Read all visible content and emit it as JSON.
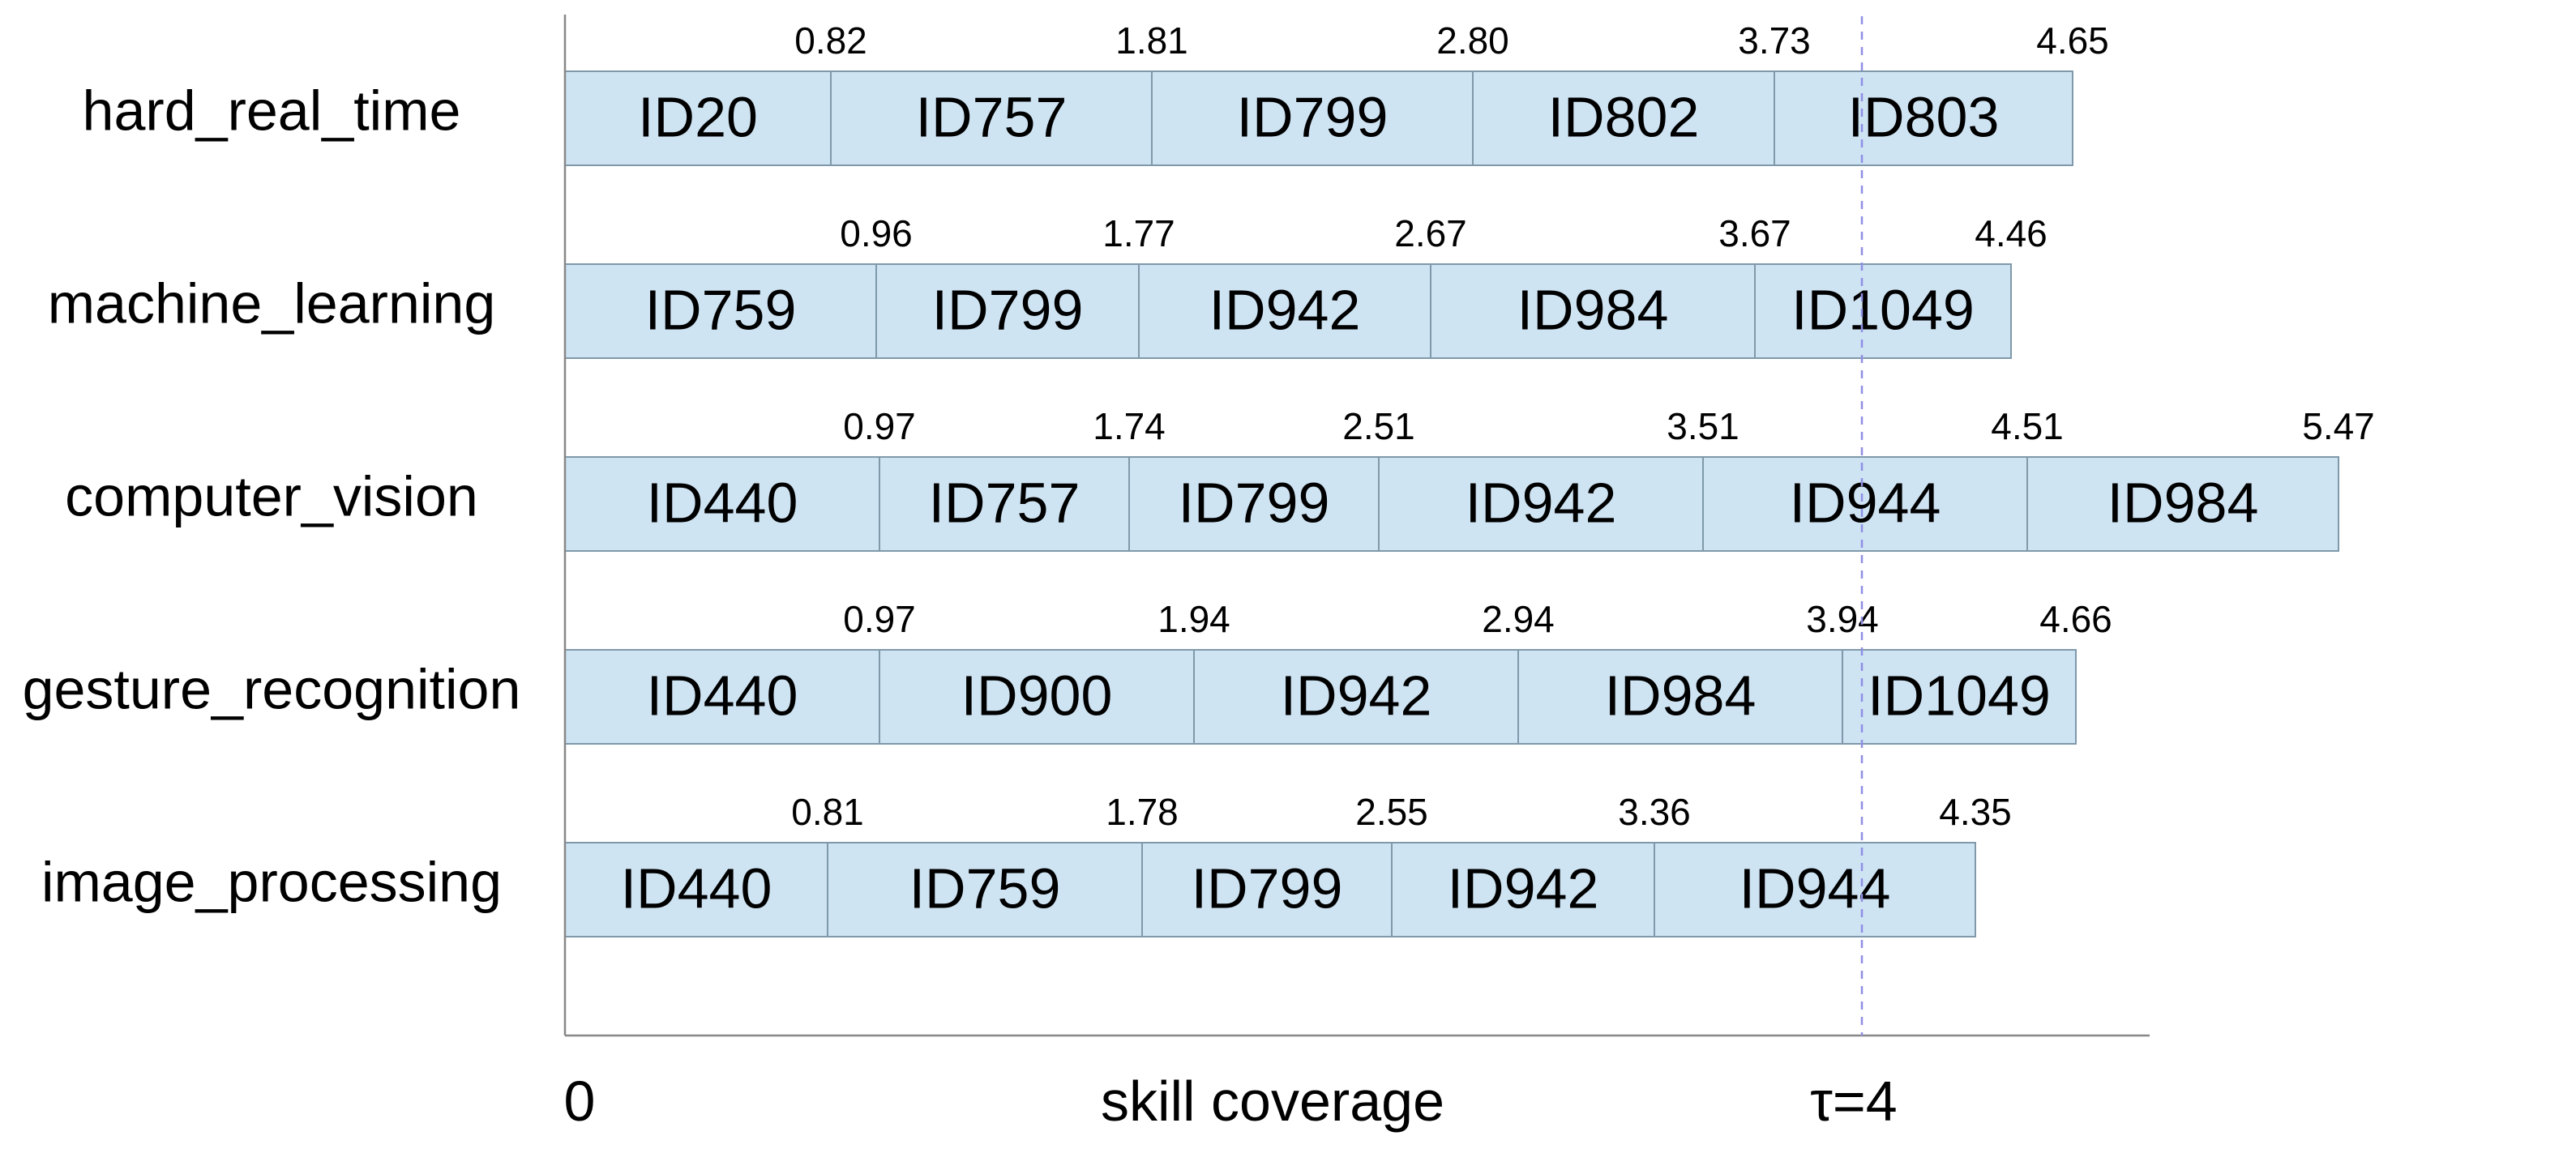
{
  "chart_data": {
    "type": "bar",
    "subtype": "stacked-horizontal",
    "xlabel": "skill coverage",
    "x_origin_label": "0",
    "threshold": {
      "label": "τ=4",
      "value": 4
    },
    "rows": [
      {
        "label": "hard_real_time",
        "segments": [
          "ID20",
          "ID757",
          "ID799",
          "ID802",
          "ID803"
        ],
        "cumulative": [
          0.82,
          1.81,
          2.8,
          3.73,
          4.65
        ],
        "cumulative_labels": [
          "0.82",
          "1.81",
          "2.80",
          "3.73",
          "4.65"
        ]
      },
      {
        "label": "machine_learning",
        "segments": [
          "ID759",
          "ID799",
          "ID942",
          "ID984",
          "ID1049"
        ],
        "cumulative": [
          0.96,
          1.77,
          2.67,
          3.67,
          4.46
        ],
        "cumulative_labels": [
          "0.96",
          "1.77",
          "2.67",
          "3.67",
          "4.46"
        ]
      },
      {
        "label": "computer_vision",
        "segments": [
          "ID440",
          "ID757",
          "ID799",
          "ID942",
          "ID944",
          "ID984"
        ],
        "cumulative": [
          0.97,
          1.74,
          2.51,
          3.51,
          4.51,
          5.47
        ],
        "cumulative_labels": [
          "0.97",
          "1.74",
          "2.51",
          "3.51",
          "4.51",
          "5.47"
        ]
      },
      {
        "label": "gesture_recognition",
        "segments": [
          "ID440",
          "ID900",
          "ID942",
          "ID984",
          "ID1049"
        ],
        "cumulative": [
          0.97,
          1.94,
          2.94,
          3.94,
          4.66
        ],
        "cumulative_labels": [
          "0.97",
          "1.94",
          "2.94",
          "3.94",
          "4.66"
        ]
      },
      {
        "label": "image_processing",
        "segments": [
          "ID440",
          "ID759",
          "ID799",
          "ID942",
          "ID944"
        ],
        "cumulative": [
          0.81,
          1.78,
          2.55,
          3.36,
          4.35
        ],
        "cumulative_labels": [
          "0.81",
          "1.78",
          "2.55",
          "3.36",
          "4.35"
        ]
      }
    ],
    "colors": {
      "bar_fill": "#cfe4f3",
      "bar_stroke": "#7f99aa",
      "threshold_line": "#8f8fe6"
    },
    "grid": false
  }
}
